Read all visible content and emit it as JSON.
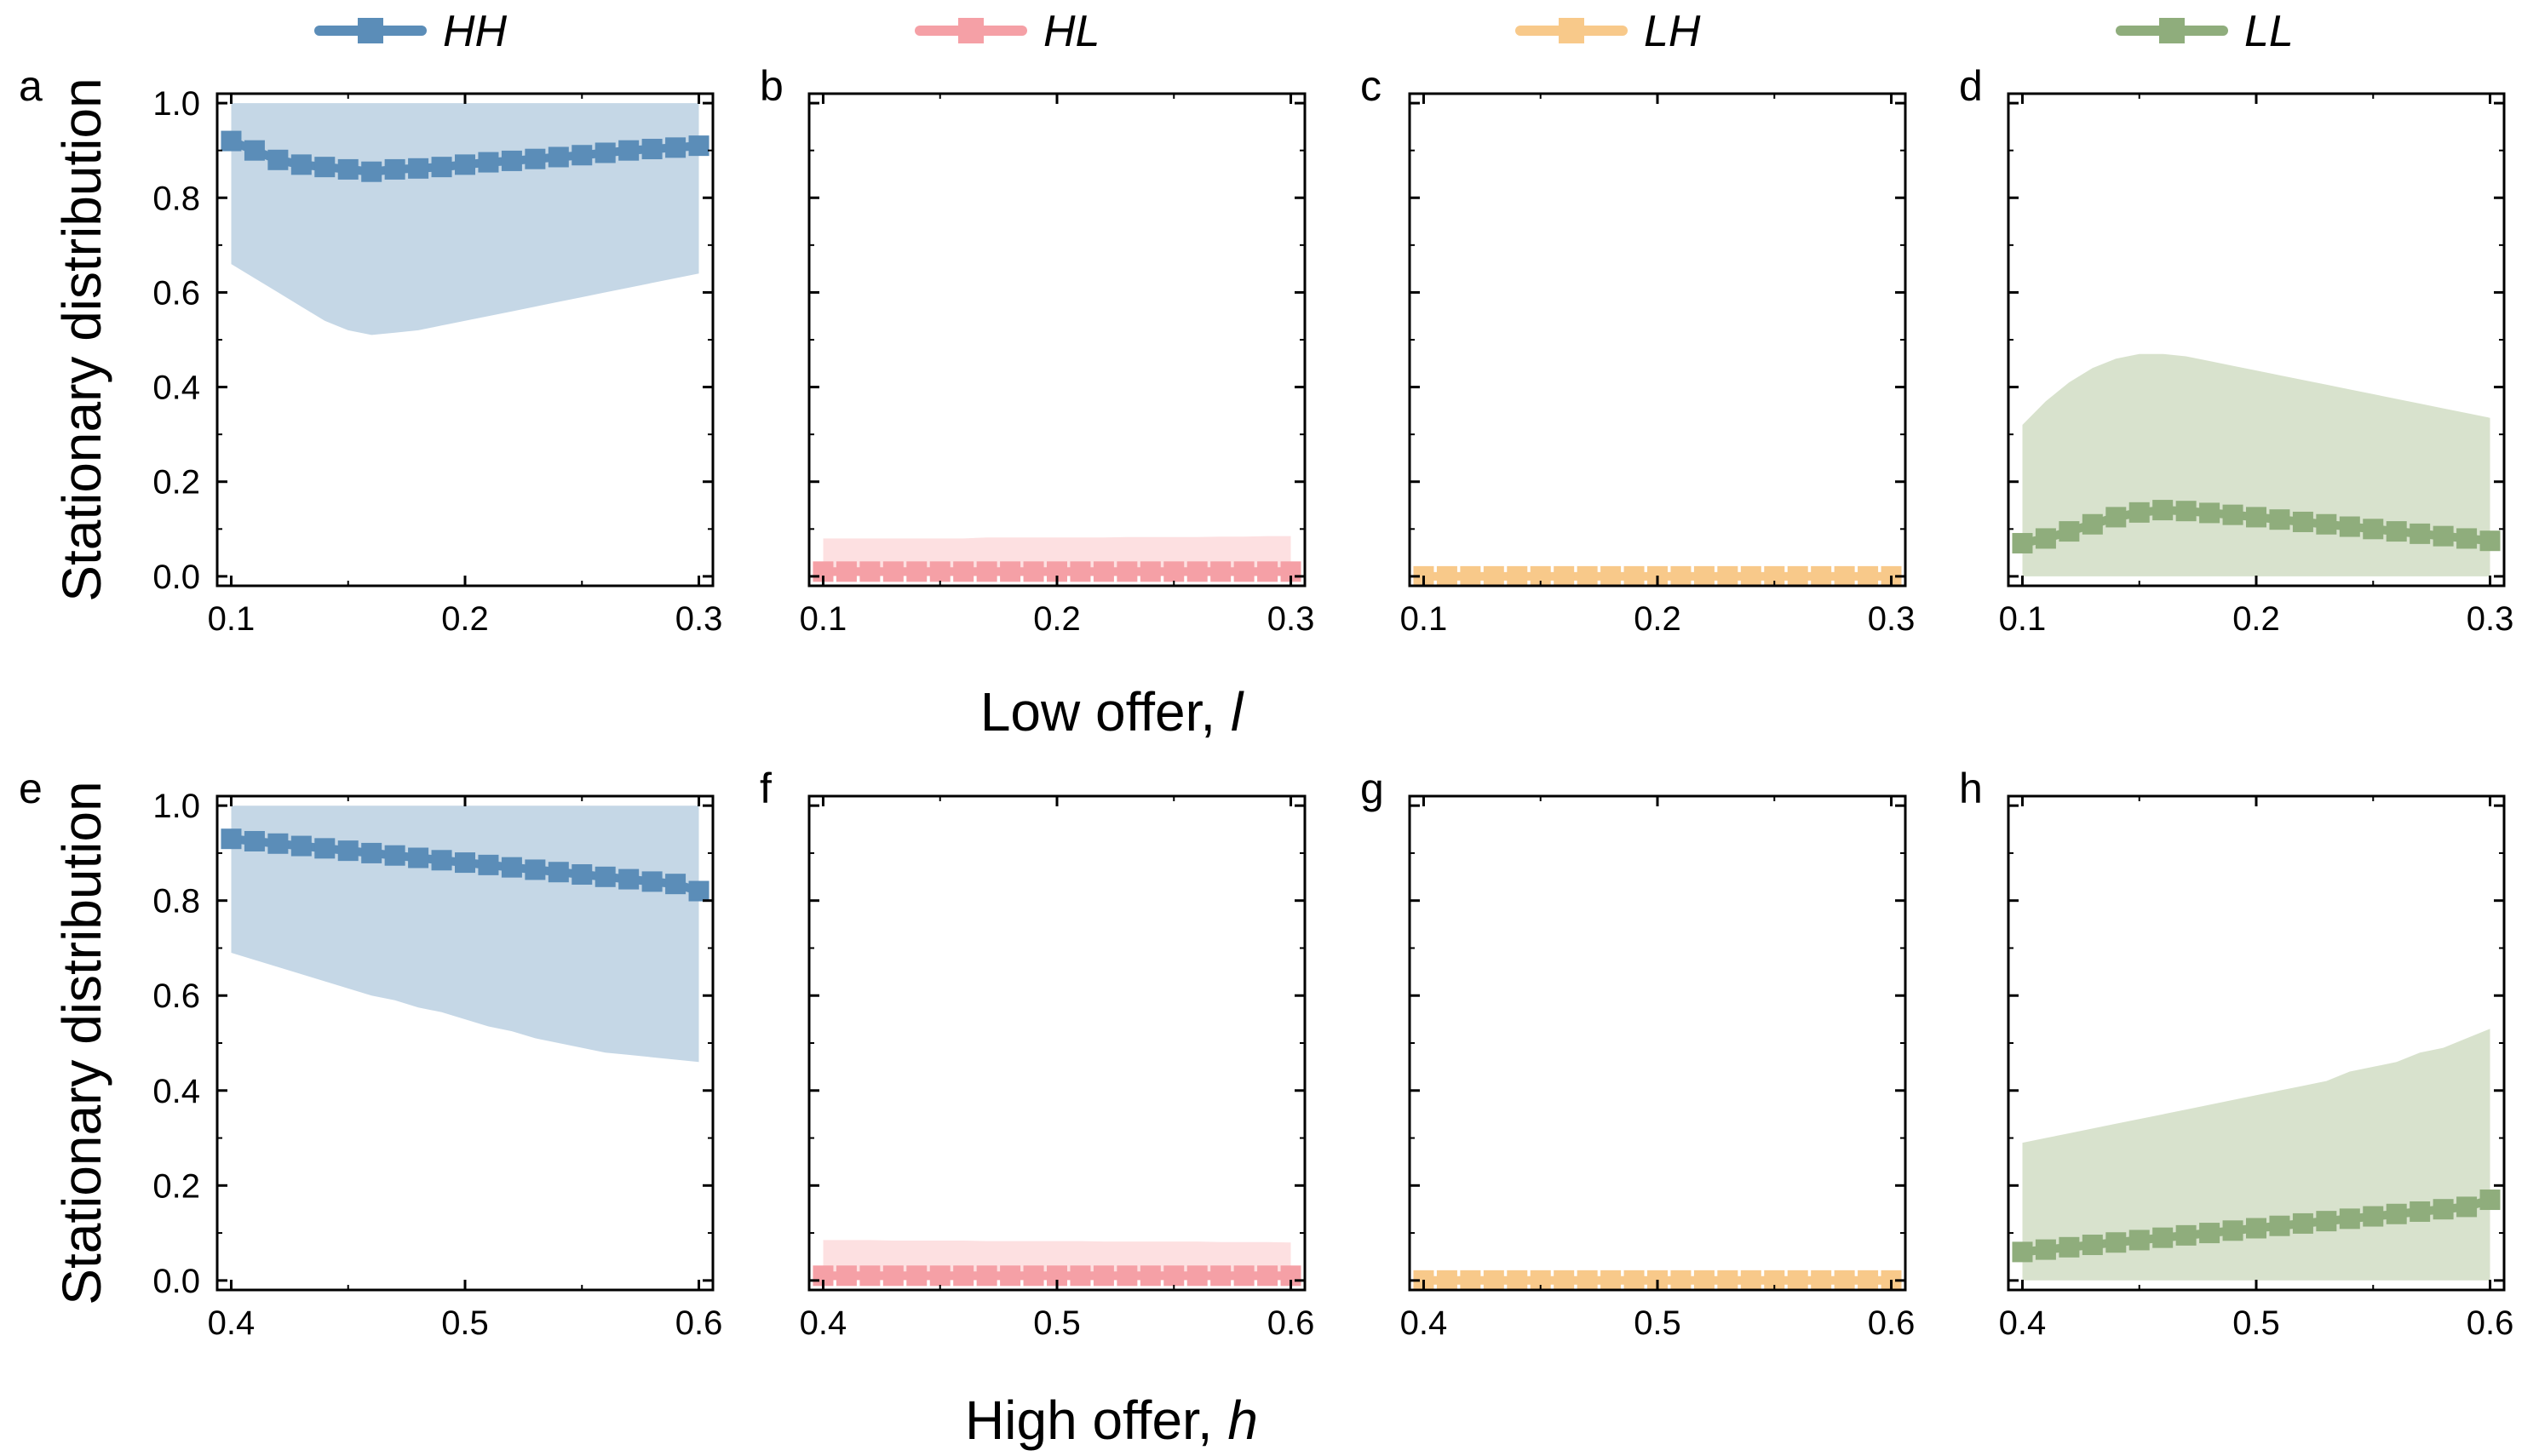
{
  "chart_data": {
    "type": "line",
    "legend": {
      "placement": "top",
      "entries": [
        {
          "label": "HH",
          "color": "#5b8db8",
          "band": "#c5d7e6"
        },
        {
          "label": "HL",
          "color": "#f5a0a6",
          "band": "#fde0e1"
        },
        {
          "label": "LH",
          "color": "#f8c98a",
          "band": "#fdecd4"
        },
        {
          "label": "LL",
          "color": "#8fad7c",
          "band": "#d8e2cd"
        }
      ]
    },
    "y_axis_title": "Stationary distribution",
    "y_ticks": [
      "0.0",
      "0.2",
      "0.4",
      "0.6",
      "0.8",
      "1.0"
    ],
    "ylim": [
      0,
      1
    ],
    "rows": [
      {
        "x_axis_title": "Low offer, ",
        "x_axis_var": "l",
        "xlim": [
          0.1,
          0.3
        ],
        "x_ticks": [
          {
            "v": 0.1,
            "label": "0.1"
          },
          {
            "v": 0.2,
            "label": "0.2"
          },
          {
            "v": 0.3,
            "label": "0.3"
          }
        ],
        "x": [
          0.1,
          0.11,
          0.12,
          0.13,
          0.14,
          0.15,
          0.16,
          0.17,
          0.18,
          0.19,
          0.2,
          0.21,
          0.22,
          0.23,
          0.24,
          0.25,
          0.26,
          0.27,
          0.28,
          0.29,
          0.3
        ],
        "panels": [
          {
            "letter": "a",
            "series": "HH",
            "mean": [
              0.92,
              0.9,
              0.88,
              0.87,
              0.865,
              0.86,
              0.855,
              0.86,
              0.862,
              0.865,
              0.87,
              0.875,
              0.878,
              0.882,
              0.886,
              0.89,
              0.895,
              0.9,
              0.903,
              0.906,
              0.91
            ],
            "lower": [
              0.66,
              0.63,
              0.6,
              0.57,
              0.54,
              0.52,
              0.51,
              0.515,
              0.52,
              0.53,
              0.54,
              0.55,
              0.56,
              0.57,
              0.58,
              0.59,
              0.6,
              0.61,
              0.62,
              0.63,
              0.64
            ],
            "upper": [
              1,
              1,
              1,
              1,
              1,
              1,
              1,
              1,
              1,
              1,
              1,
              1,
              1,
              1,
              1,
              1,
              1,
              1,
              1,
              1,
              1
            ]
          },
          {
            "letter": "b",
            "series": "HL",
            "mean": [
              0.01,
              0.01,
              0.01,
              0.01,
              0.01,
              0.01,
              0.01,
              0.01,
              0.01,
              0.01,
              0.01,
              0.01,
              0.01,
              0.01,
              0.01,
              0.01,
              0.01,
              0.01,
              0.01,
              0.01,
              0.01
            ],
            "lower": [
              0,
              0,
              0,
              0,
              0,
              0,
              0,
              0,
              0,
              0,
              0,
              0,
              0,
              0,
              0,
              0,
              0,
              0,
              0,
              0,
              0
            ],
            "upper": [
              0.08,
              0.08,
              0.08,
              0.08,
              0.08,
              0.08,
              0.08,
              0.082,
              0.082,
              0.082,
              0.082,
              0.082,
              0.082,
              0.083,
              0.083,
              0.083,
              0.083,
              0.084,
              0.084,
              0.085,
              0.085
            ]
          },
          {
            "letter": "c",
            "series": "LH",
            "mean": [
              0,
              0,
              0,
              0,
              0,
              0,
              0,
              0,
              0,
              0,
              0,
              0,
              0,
              0,
              0,
              0,
              0,
              0,
              0,
              0,
              0
            ],
            "lower": [
              0,
              0,
              0,
              0,
              0,
              0,
              0,
              0,
              0,
              0,
              0,
              0,
              0,
              0,
              0,
              0,
              0,
              0,
              0,
              0,
              0
            ],
            "upper": [
              0.005,
              0.005,
              0.005,
              0.005,
              0.005,
              0.005,
              0.005,
              0.005,
              0.005,
              0.005,
              0.005,
              0.005,
              0.005,
              0.005,
              0.005,
              0.005,
              0.005,
              0.005,
              0.005,
              0.005,
              0.005
            ]
          },
          {
            "letter": "d",
            "series": "LL",
            "mean": [
              0.07,
              0.08,
              0.095,
              0.11,
              0.125,
              0.135,
              0.14,
              0.138,
              0.134,
              0.13,
              0.125,
              0.12,
              0.115,
              0.11,
              0.105,
              0.1,
              0.095,
              0.09,
              0.085,
              0.08,
              0.075
            ],
            "lower": [
              0,
              0,
              0,
              0,
              0,
              0,
              0,
              0,
              0,
              0,
              0,
              0,
              0,
              0,
              0,
              0,
              0,
              0,
              0,
              0,
              0
            ],
            "upper": [
              0.32,
              0.37,
              0.41,
              0.44,
              0.46,
              0.47,
              0.47,
              0.465,
              0.455,
              0.445,
              0.435,
              0.425,
              0.415,
              0.405,
              0.395,
              0.385,
              0.375,
              0.365,
              0.355,
              0.345,
              0.335
            ]
          }
        ]
      },
      {
        "x_axis_title": "High offer, ",
        "x_axis_var": "h",
        "xlim": [
          0.4,
          0.6
        ],
        "x_ticks": [
          {
            "v": 0.4,
            "label": "0.4"
          },
          {
            "v": 0.5,
            "label": "0.5"
          },
          {
            "v": 0.6,
            "label": "0.6"
          }
        ],
        "x": [
          0.4,
          0.41,
          0.42,
          0.43,
          0.44,
          0.45,
          0.46,
          0.47,
          0.48,
          0.49,
          0.5,
          0.51,
          0.52,
          0.53,
          0.54,
          0.55,
          0.56,
          0.57,
          0.58,
          0.59,
          0.6
        ],
        "panels": [
          {
            "letter": "e",
            "series": "HH",
            "mean": [
              0.93,
              0.925,
              0.92,
              0.915,
              0.91,
              0.905,
              0.9,
              0.895,
              0.89,
              0.885,
              0.88,
              0.875,
              0.87,
              0.865,
              0.86,
              0.855,
              0.85,
              0.845,
              0.84,
              0.835,
              0.82
            ],
            "lower": [
              0.69,
              0.675,
              0.66,
              0.645,
              0.63,
              0.615,
              0.6,
              0.59,
              0.575,
              0.565,
              0.55,
              0.535,
              0.525,
              0.51,
              0.5,
              0.49,
              0.48,
              0.475,
              0.47,
              0.465,
              0.46
            ],
            "upper": [
              1,
              1,
              1,
              1,
              1,
              1,
              1,
              1,
              1,
              1,
              1,
              1,
              1,
              1,
              1,
              1,
              1,
              1,
              1,
              1,
              1
            ]
          },
          {
            "letter": "f",
            "series": "HL",
            "mean": [
              0.01,
              0.01,
              0.01,
              0.01,
              0.01,
              0.01,
              0.01,
              0.01,
              0.01,
              0.01,
              0.01,
              0.01,
              0.01,
              0.01,
              0.01,
              0.01,
              0.01,
              0.01,
              0.01,
              0.01,
              0.01
            ],
            "lower": [
              0,
              0,
              0,
              0,
              0,
              0,
              0,
              0,
              0,
              0,
              0,
              0,
              0,
              0,
              0,
              0,
              0,
              0,
              0,
              0,
              0
            ],
            "upper": [
              0.085,
              0.085,
              0.085,
              0.084,
              0.084,
              0.084,
              0.084,
              0.083,
              0.083,
              0.083,
              0.083,
              0.083,
              0.082,
              0.082,
              0.082,
              0.082,
              0.082,
              0.081,
              0.081,
              0.081,
              0.08
            ]
          },
          {
            "letter": "g",
            "series": "LH",
            "mean": [
              0,
              0,
              0,
              0,
              0,
              0,
              0,
              0,
              0,
              0,
              0,
              0,
              0,
              0,
              0,
              0,
              0,
              0,
              0,
              0,
              0
            ],
            "lower": [
              0,
              0,
              0,
              0,
              0,
              0,
              0,
              0,
              0,
              0,
              0,
              0,
              0,
              0,
              0,
              0,
              0,
              0,
              0,
              0,
              0
            ],
            "upper": [
              0.005,
              0.005,
              0.005,
              0.005,
              0.005,
              0.005,
              0.005,
              0.005,
              0.005,
              0.005,
              0.005,
              0.005,
              0.005,
              0.005,
              0.005,
              0.005,
              0.005,
              0.005,
              0.005,
              0.005,
              0.005
            ]
          },
          {
            "letter": "h",
            "series": "LL",
            "mean": [
              0.06,
              0.065,
              0.07,
              0.075,
              0.08,
              0.085,
              0.09,
              0.095,
              0.1,
              0.105,
              0.11,
              0.115,
              0.12,
              0.125,
              0.13,
              0.135,
              0.14,
              0.145,
              0.15,
              0.155,
              0.17
            ],
            "lower": [
              0,
              0,
              0,
              0,
              0,
              0,
              0,
              0,
              0,
              0,
              0,
              0,
              0,
              0,
              0,
              0,
              0,
              0,
              0,
              0,
              0
            ],
            "upper": [
              0.29,
              0.3,
              0.31,
              0.32,
              0.33,
              0.34,
              0.35,
              0.36,
              0.37,
              0.38,
              0.39,
              0.4,
              0.41,
              0.42,
              0.44,
              0.45,
              0.46,
              0.48,
              0.49,
              0.51,
              0.53
            ]
          }
        ]
      }
    ]
  }
}
